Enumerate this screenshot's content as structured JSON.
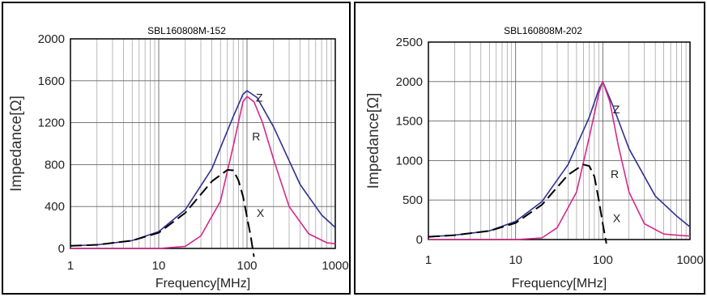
{
  "chart_data": [
    {
      "type": "line",
      "title": "SBL160808M-152",
      "xlabel": "Frequency[MHz]",
      "ylabel": "Impedance[Ω]",
      "x_scale": "log",
      "xlim": [
        1,
        1000
      ],
      "ylim": [
        0,
        2000
      ],
      "x_ticks": [
        1,
        10,
        100,
        1000
      ],
      "x_tick_labels": [
        "1",
        "10",
        "100",
        "1000"
      ],
      "y_ticks": [
        0,
        400,
        800,
        1200,
        1600,
        2000
      ],
      "y_tick_labels": [
        "0",
        "400",
        "800",
        "1200",
        "1600",
        "2000"
      ],
      "grid": true,
      "colors": {
        "Z": "#2e3192",
        "R": "#d6288c",
        "X": "#000000"
      },
      "series": [
        {
          "name": "Z",
          "x": [
            1,
            2,
            5,
            10,
            20,
            40,
            70,
            90,
            100,
            130,
            200,
            400,
            700,
            1000
          ],
          "y": [
            25,
            35,
            75,
            160,
            370,
            760,
            1260,
            1470,
            1505,
            1440,
            1160,
            610,
            320,
            200
          ]
        },
        {
          "name": "R",
          "x": [
            1,
            10,
            20,
            30,
            50,
            70,
            90,
            100,
            120,
            150,
            200,
            300,
            500,
            800,
            1000
          ],
          "y": [
            0,
            0,
            20,
            120,
            450,
            980,
            1400,
            1450,
            1400,
            1200,
            850,
            400,
            140,
            55,
            45
          ]
        },
        {
          "name": "X",
          "x": [
            1,
            2,
            5,
            10,
            20,
            40,
            60,
            70,
            80,
            90,
            100,
            110,
            120
          ],
          "y": [
            25,
            35,
            75,
            150,
            340,
            640,
            750,
            745,
            650,
            500,
            300,
            120,
            -80
          ]
        }
      ],
      "annotations": [
        "Z",
        "R",
        "X"
      ]
    },
    {
      "type": "line",
      "title": "SBL160808M-202",
      "xlabel": "Frequency[MHz]",
      "ylabel": "Impedance[Ω]",
      "x_scale": "log",
      "xlim": [
        1,
        1000
      ],
      "ylim": [
        0,
        2500
      ],
      "x_ticks": [
        1,
        10,
        100,
        1000
      ],
      "x_tick_labels": [
        "1",
        "10",
        "100",
        "1000"
      ],
      "y_ticks": [
        0,
        500,
        1000,
        1500,
        2000,
        2500
      ],
      "y_tick_labels": [
        "0",
        "500",
        "1000",
        "1500",
        "2000",
        "2500"
      ],
      "grid": true,
      "colors": {
        "Z": "#2e3192",
        "R": "#d6288c",
        "X": "#000000"
      },
      "series": [
        {
          "name": "Z",
          "x": [
            1,
            2,
            5,
            10,
            20,
            40,
            70,
            90,
            100,
            130,
            200,
            400,
            700,
            1000
          ],
          "y": [
            35,
            55,
            110,
            230,
            480,
            950,
            1550,
            1900,
            2000,
            1700,
            1150,
            550,
            300,
            160
          ]
        },
        {
          "name": "R",
          "x": [
            1,
            10,
            20,
            30,
            50,
            70,
            90,
            100,
            120,
            150,
            200,
            300,
            500,
            800,
            1000
          ],
          "y": [
            0,
            0,
            20,
            150,
            600,
            1300,
            1850,
            2000,
            1750,
            1200,
            600,
            200,
            70,
            50,
            45
          ]
        },
        {
          "name": "X",
          "x": [
            1,
            2,
            5,
            10,
            20,
            40,
            60,
            70,
            80,
            90,
            100,
            110
          ],
          "y": [
            35,
            55,
            110,
            210,
            440,
            820,
            950,
            930,
            800,
            500,
            200,
            -50
          ]
        }
      ],
      "annotations": [
        "Z",
        "R",
        "X"
      ]
    }
  ]
}
